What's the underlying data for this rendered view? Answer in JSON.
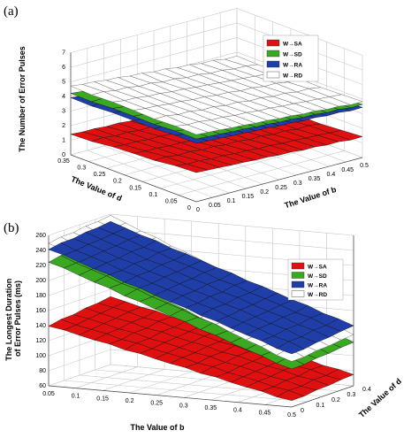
{
  "panels": [
    {
      "label": "(a)",
      "legend": [
        {
          "name": "W→SA",
          "color": "#e01010"
        },
        {
          "name": "W→SD",
          "color": "#3aa820"
        },
        {
          "name": "W→RA",
          "color": "#1f3ea8"
        },
        {
          "name": "W→RD",
          "color": "#ffffff"
        }
      ],
      "z_title": "The Number of Error Pulses",
      "d_title": "The Value of d",
      "b_title": "The Value of b",
      "z_ticks": [
        "0",
        "1",
        "2",
        "3",
        "4",
        "5",
        "6",
        "7"
      ],
      "d_ticks": [
        "0",
        "0.05",
        "0.1",
        "0.15",
        "0.2",
        "0.25",
        "0.3",
        "0.35"
      ],
      "b_ticks": [
        "0",
        "0.05",
        "0.1",
        "0.15",
        "0.2",
        "0.25",
        "0.3",
        "0.35",
        "0.4",
        "0.45",
        "0.5"
      ]
    },
    {
      "label": "(b)",
      "legend": [
        {
          "name": "W→SA",
          "color": "#e01010"
        },
        {
          "name": "W→SD",
          "color": "#3aa820"
        },
        {
          "name": "W→RA",
          "color": "#1f3ea8"
        },
        {
          "name": "W→RD",
          "color": "#ffffff"
        }
      ],
      "z_title": "The Longest Duration of Error Pulses (ms)",
      "b_title": "The Value of b",
      "d_title": "The Value of d",
      "z_ticks": [
        "60",
        "80",
        "100",
        "120",
        "140",
        "160",
        "180",
        "200",
        "220",
        "240",
        "260"
      ],
      "b_ticks": [
        "0.05",
        "0.1",
        "0.15",
        "0.2",
        "0.25",
        "0.3",
        "0.35",
        "0.4",
        "0.45",
        "0.5"
      ],
      "d_ticks": [
        "0",
        "0.1",
        "0.2",
        "0.3",
        "0.4"
      ]
    }
  ],
  "chart_data": [
    {
      "type": "surface",
      "title": "",
      "xlabel": "The Value of b",
      "ylabel": "The Value of d",
      "zlabel": "The Number of Error Pulses",
      "xlim": [
        0,
        0.5
      ],
      "ylim": [
        0,
        0.35
      ],
      "zlim": [
        0,
        7
      ],
      "series": [
        {
          "name": "W→SA",
          "z_at_corners": {
            "b0_d0": 2.0,
            "b0.5_d0": 1.4,
            "b0_d0.35": 1.4,
            "b0.5_d0.35": 1.0
          }
        },
        {
          "name": "W→SD",
          "z_at_corners": {
            "b0_d0": 4.3,
            "b0.5_d0": 3.6,
            "b0_d0.35": 4.2,
            "b0.5_d0.35": 3.5
          }
        },
        {
          "name": "W→RA",
          "z_at_corners": {
            "b0_d0": 4.0,
            "b0.5_d0": 3.4,
            "b0_d0.35": 3.9,
            "b0.5_d0.35": 3.3
          }
        },
        {
          "name": "W→RD",
          "z_at_corners": {
            "b0_d0": 4.6,
            "b0.5_d0": 3.8,
            "b0_d0.35": 4.7,
            "b0.5_d0.35": 3.7
          }
        }
      ]
    },
    {
      "type": "surface",
      "title": "",
      "xlabel": "The Value of b",
      "ylabel": "The Value of d",
      "zlabel": "The Longest Duration of Error Pulses (ms)",
      "xlim": [
        0.05,
        0.5
      ],
      "ylim": [
        0,
        0.4
      ],
      "zlim": [
        60,
        260
      ],
      "series": [
        {
          "name": "W→SA",
          "z_at_corners": {
            "b0.05_d0": 140,
            "b0.5_d0": 68,
            "b0.05_d0.4": 150,
            "b0.5_d0.4": 75
          }
        },
        {
          "name": "W→SD",
          "z_at_corners": {
            "b0.05_d0": 225,
            "b0.5_d0": 110,
            "b0.05_d0.4": 235,
            "b0.5_d0.4": 118
          }
        },
        {
          "name": "W→RA",
          "z_at_corners": {
            "b0.05_d0": 242,
            "b0.5_d0": 130,
            "b0.05_d0.4": 250,
            "b0.5_d0.4": 140
          }
        },
        {
          "name": "W→RD",
          "z_at_corners": {
            "b0.05_d0": 250,
            "b0.5_d0": 120,
            "b0.05_d0.4": 258,
            "b0.5_d0.4": 128
          }
        }
      ]
    }
  ]
}
